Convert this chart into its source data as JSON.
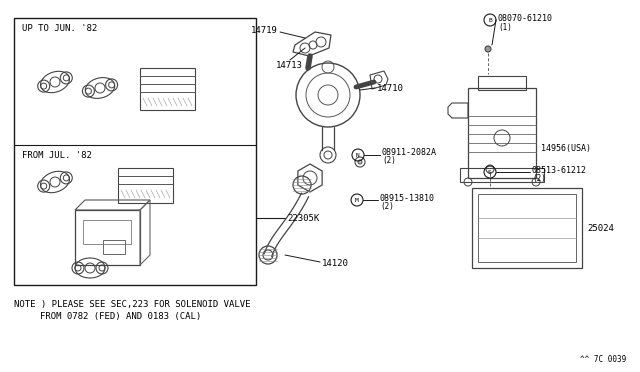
{
  "bg_color": "#ffffff",
  "line_color": "#1a1a1a",
  "gray": "#555555",
  "light_gray": "#888888",
  "note_line1": "NOTE ) PLEASE SEE SEC,223 FOR SOLENOID VALVE",
  "note_line2": "        FROM 0782 (FED) AND 0183 (CAL)",
  "diagram_code": "^^ 7C 0039"
}
